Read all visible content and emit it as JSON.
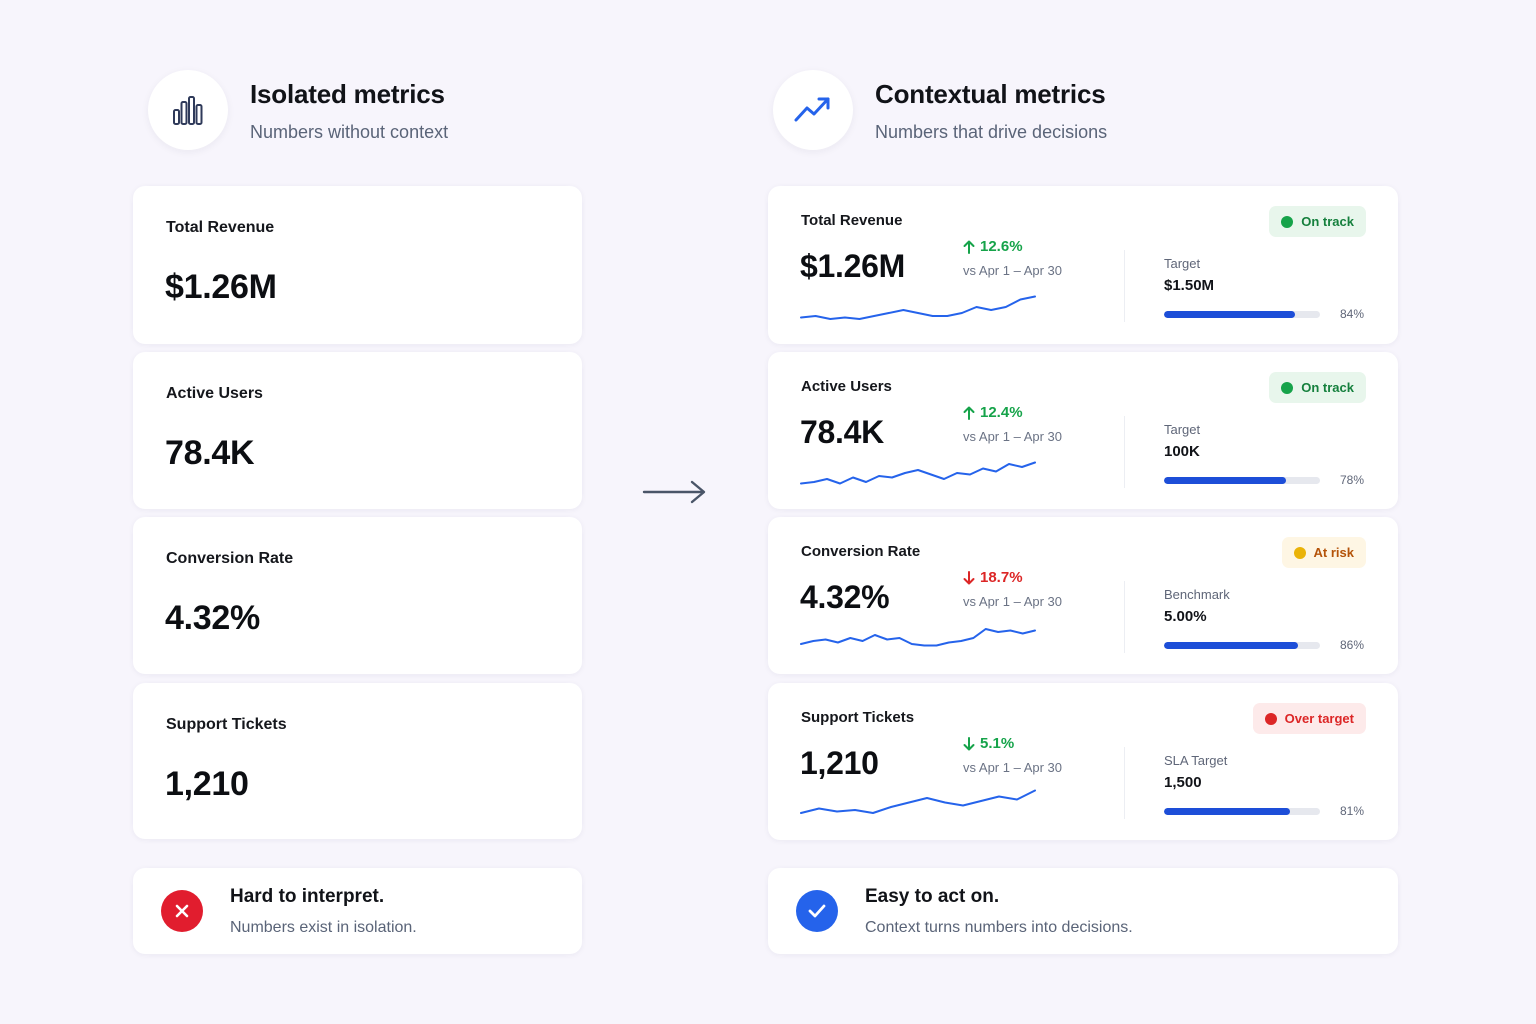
{
  "left": {
    "title": "Isolated metrics",
    "subtitle": "Numbers without context",
    "icon": "bar-chart-icon",
    "metrics": [
      {
        "label": "Total Revenue",
        "value": "$1.26M"
      },
      {
        "label": "Active Users",
        "value": "78.4K"
      },
      {
        "label": "Conversion Rate",
        "value": "4.32%"
      },
      {
        "label": "Support Tickets",
        "value": "1,210"
      }
    ],
    "footer": {
      "title": "Hard to interpret.",
      "subtitle": "Numbers exist in isolation.",
      "icon": "close-icon"
    }
  },
  "arrow_icon": "arrow-right-icon",
  "right": {
    "title": "Contextual metrics",
    "subtitle": "Numbers that drive decisions",
    "icon": "trending-up-icon",
    "metrics": [
      {
        "label": "Total Revenue",
        "value": "$1.26M",
        "delta": "12.6%",
        "delta_direction": "up",
        "delta_color": "#16a34a",
        "period": "vs Apr 1 – Apr 30",
        "status": "On track",
        "status_color": "#16a34a",
        "status_bg": "#e8f6ec",
        "status_text_color": "#15803d",
        "target_label": "Target",
        "target_value": "$1.50M",
        "progress": 84,
        "progress_label": "84%",
        "trend": [
          3,
          4,
          2,
          3,
          2,
          4,
          6,
          8,
          6,
          4,
          4,
          6,
          10,
          8,
          10,
          15,
          17
        ]
      },
      {
        "label": "Active Users",
        "value": "78.4K",
        "delta": "12.4%",
        "delta_direction": "up",
        "delta_color": "#16a34a",
        "period": "vs Apr 1 – Apr 30",
        "status": "On track",
        "status_color": "#16a34a",
        "status_bg": "#e8f6ec",
        "status_text_color": "#15803d",
        "target_label": "Target",
        "target_value": "100K",
        "progress": 78,
        "progress_label": "78%",
        "trend": [
          3,
          4,
          6,
          3,
          7,
          4,
          8,
          7,
          10,
          12,
          9,
          6,
          10,
          9,
          13,
          11,
          16,
          14,
          17
        ]
      },
      {
        "label": "Conversion Rate",
        "value": "4.32%",
        "delta": "18.7%",
        "delta_direction": "down",
        "delta_color": "#dc2626",
        "period": "vs Apr 1 – Apr 30",
        "status": "At risk",
        "status_color": "#eab308",
        "status_bg": "#fef6e4",
        "status_text_color": "#b45309",
        "target_label": "Benchmark",
        "target_value": "5.00%",
        "progress": 86,
        "progress_label": "86%",
        "trend": [
          6,
          8,
          9,
          7,
          10,
          8,
          12,
          9,
          10,
          6,
          5,
          5,
          7,
          8,
          10,
          16,
          14,
          15,
          13,
          15
        ]
      },
      {
        "label": "Support Tickets",
        "value": "1,210",
        "delta": "5.1%",
        "delta_direction": "down",
        "delta_color": "#16a34a",
        "period": "vs Apr 1 – Apr 30",
        "status": "Over target",
        "status_color": "#dc2626",
        "status_bg": "#fdeaea",
        "status_text_color": "#dc2626",
        "target_label": "SLA Target",
        "target_value": "1,500",
        "progress": 81,
        "progress_label": "81%",
        "trend": [
          4,
          7,
          5,
          6,
          4,
          8,
          11,
          14,
          11,
          9,
          12,
          15,
          13,
          19
        ]
      }
    ],
    "footer": {
      "title": "Easy to act on.",
      "subtitle": "Context turns numbers into decisions.",
      "icon": "check-icon"
    }
  }
}
